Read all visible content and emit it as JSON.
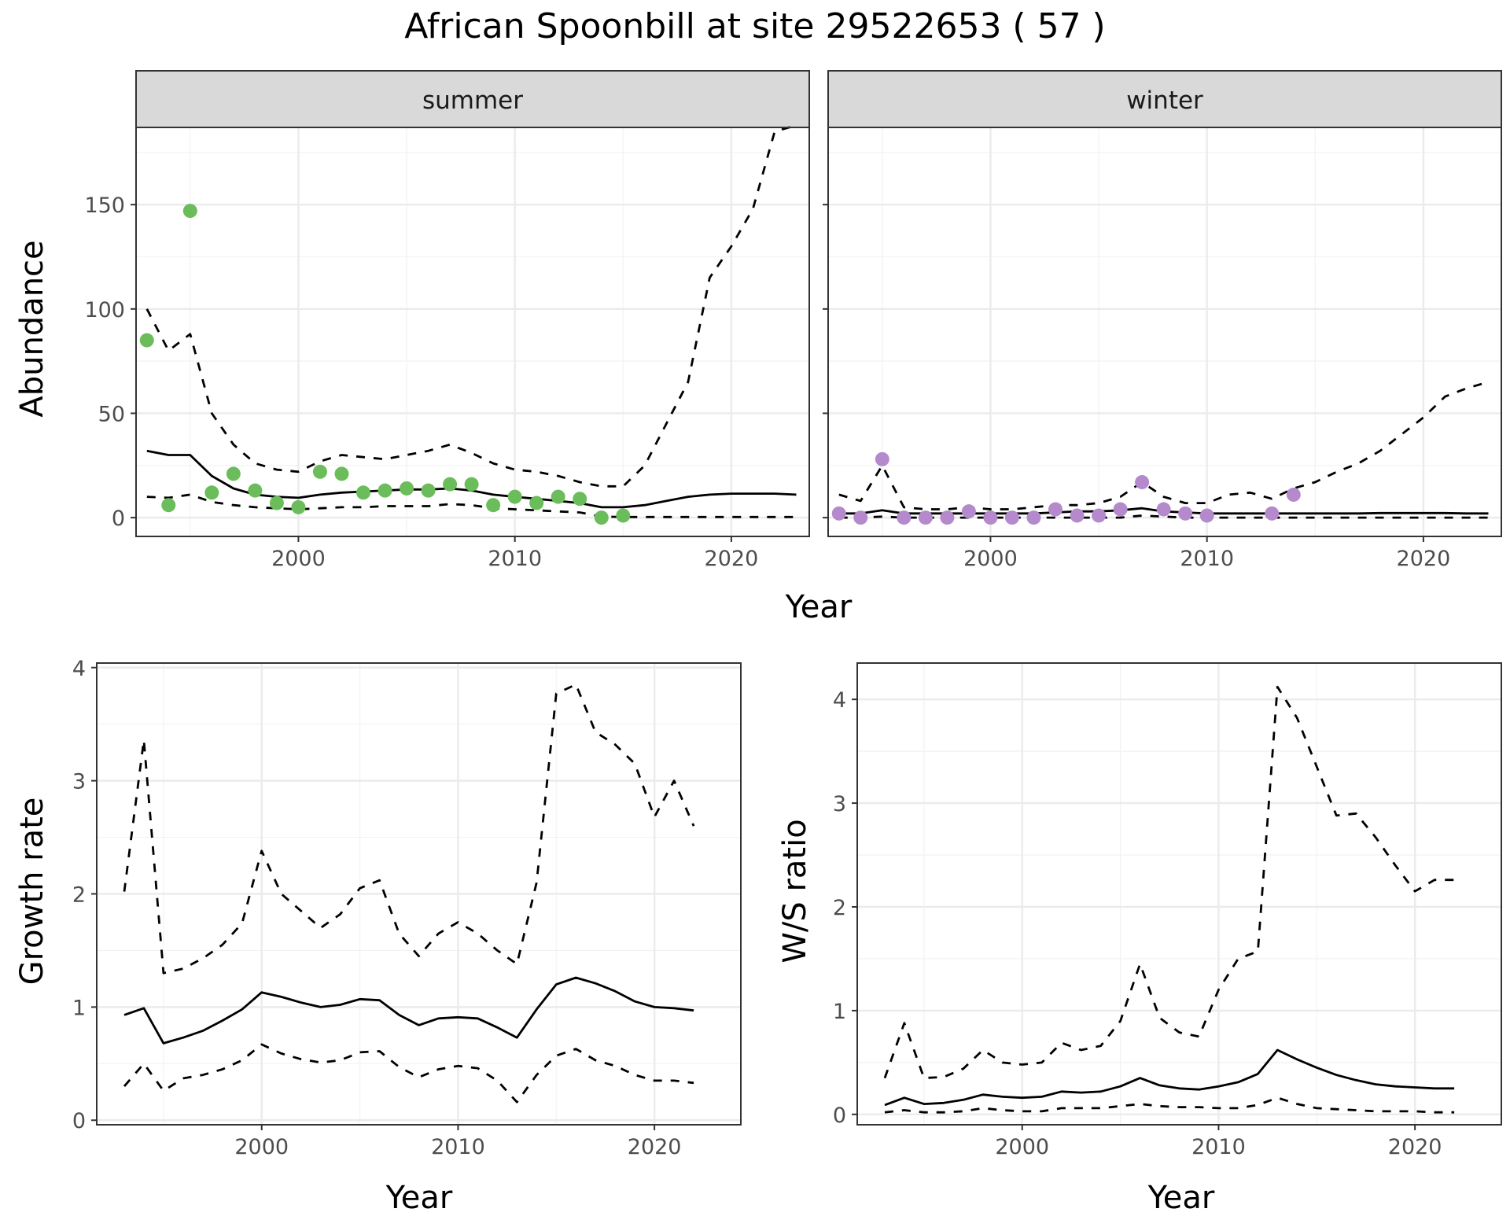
{
  "title": "African Spoonbill at site 29522653 ( 57 )",
  "colors": {
    "summer": "#6abd5a",
    "winter": "#b58acd",
    "line": "#000000",
    "strip_bg": "#d9d9d9"
  },
  "chart_data": [
    {
      "type": "scatter",
      "panel": "summer",
      "strip_label": "summer",
      "xlabel": "Year",
      "ylabel": "Abundance",
      "xlim": [
        1992.5,
        2023.6
      ],
      "ylim": [
        -9,
        187
      ],
      "x_ticks": [
        2000,
        2010,
        2020
      ],
      "y_ticks": [
        0,
        50,
        100,
        150
      ],
      "grid": true,
      "points": {
        "x": [
          1993,
          1994,
          1995,
          1996,
          1997,
          1998,
          1999,
          2000,
          2001,
          2002,
          2003,
          2004,
          2005,
          2006,
          2007,
          2008,
          2009,
          2010,
          2011,
          2012,
          2013,
          2014,
          2015
        ],
        "y": [
          85,
          6,
          147,
          12,
          21,
          13,
          7,
          5,
          22,
          21,
          12,
          13,
          14,
          13,
          16,
          16,
          6,
          10,
          7,
          10,
          9,
          0,
          1
        ]
      },
      "lines": {
        "x": [
          1993,
          1994,
          1995,
          1996,
          1997,
          1998,
          1999,
          2000,
          2001,
          2002,
          2003,
          2004,
          2005,
          2006,
          2007,
          2008,
          2009,
          2010,
          2011,
          2012,
          2013,
          2014,
          2015,
          2016,
          2017,
          2018,
          2019,
          2020,
          2021,
          2022,
          2023
        ],
        "mean": [
          32,
          30,
          30,
          20,
          14,
          11,
          10,
          9.5,
          11,
          12,
          12.5,
          13,
          13.5,
          13.5,
          14,
          13,
          11,
          10,
          9,
          8,
          7,
          5,
          5,
          6,
          8,
          10,
          11,
          11.5,
          11.5,
          11.5,
          11
        ],
        "lower": [
          10,
          9.5,
          11,
          7.5,
          6,
          5,
          4.5,
          4,
          4.5,
          5,
          5,
          5.5,
          5.5,
          5.5,
          6.5,
          6,
          4.5,
          4,
          3.5,
          3,
          2.5,
          0.5,
          0.3,
          0.3,
          0.3,
          0.3,
          0.3,
          0.3,
          0.3,
          0.3,
          0.3
        ],
        "upper": [
          100,
          80,
          88,
          50,
          35,
          26,
          23,
          22,
          27,
          30,
          29,
          28,
          30,
          32,
          35,
          31,
          26,
          23,
          22,
          20,
          17,
          15,
          15,
          25,
          45,
          65,
          115,
          130,
          148,
          185,
          188
        ]
      }
    },
    {
      "type": "scatter",
      "panel": "winter",
      "strip_label": "winter",
      "xlabel": "Year",
      "ylabel": "Abundance",
      "xlim": [
        1992.5,
        2023.6
      ],
      "ylim": [
        -9,
        187
      ],
      "x_ticks": [
        2000,
        2010,
        2020
      ],
      "grid": true,
      "points": {
        "x": [
          1993,
          1994,
          1995,
          1996,
          1997,
          1998,
          1999,
          2000,
          2001,
          2002,
          2003,
          2004,
          2005,
          2006,
          2007,
          2008,
          2009,
          2010,
          2013,
          2014
        ],
        "y": [
          2,
          0,
          28,
          0,
          0,
          0,
          3,
          0,
          0,
          0,
          4,
          1,
          1,
          4,
          17,
          4,
          2,
          1,
          2,
          11
        ]
      },
      "lines": {
        "x": [
          1993,
          1994,
          1995,
          1996,
          1997,
          1998,
          1999,
          2000,
          2001,
          2002,
          2003,
          2004,
          2005,
          2006,
          2007,
          2008,
          2009,
          2010,
          2011,
          2012,
          2013,
          2014,
          2015,
          2016,
          2017,
          2018,
          2019,
          2020,
          2021,
          2022,
          2023
        ],
        "mean": [
          2,
          2,
          3.5,
          2,
          2,
          2,
          2,
          2,
          2,
          2,
          2.5,
          3,
          3,
          3.5,
          4.5,
          3,
          2.5,
          2,
          2,
          2,
          2,
          2,
          2,
          2,
          2,
          2.2,
          2.2,
          2.2,
          2.2,
          2,
          2
        ],
        "lower": [
          0,
          0,
          0.5,
          0,
          0,
          0,
          0,
          0,
          0,
          0,
          0,
          0,
          0,
          0,
          1,
          0.5,
          0,
          0,
          0,
          0,
          0,
          0,
          0,
          0,
          0,
          0,
          0,
          0,
          0,
          0,
          0
        ],
        "upper": [
          11,
          8,
          25,
          5,
          4,
          4,
          5,
          4,
          4,
          5,
          6,
          6,
          7,
          10,
          17,
          10,
          7,
          7,
          11,
          12,
          9,
          14,
          17,
          22,
          26,
          32,
          40,
          48,
          58,
          62,
          65
        ]
      }
    },
    {
      "type": "line",
      "panel": "growth",
      "xlabel": "Year",
      "ylabel": "Growth rate",
      "xlim": [
        1991.6,
        2024.4
      ],
      "ylim": [
        -0.04,
        4.04
      ],
      "x_ticks": [
        2000,
        2010,
        2020
      ],
      "y_ticks": [
        0,
        1,
        2,
        3,
        4
      ],
      "grid": true,
      "x": [
        1993,
        1994,
        1995,
        1996,
        1997,
        1998,
        1999,
        2000,
        2001,
        2002,
        2003,
        2004,
        2005,
        2006,
        2007,
        2008,
        2009,
        2010,
        2011,
        2012,
        2013,
        2014,
        2015,
        2016,
        2017,
        2018,
        2019,
        2020,
        2021,
        2022
      ],
      "mean": [
        0.93,
        0.99,
        0.68,
        0.73,
        0.79,
        0.88,
        0.98,
        1.13,
        1.09,
        1.04,
        1.0,
        1.02,
        1.07,
        1.06,
        0.93,
        0.84,
        0.9,
        0.91,
        0.9,
        0.82,
        0.73,
        0.98,
        1.2,
        1.26,
        1.21,
        1.14,
        1.05,
        1.0,
        0.99,
        0.97
      ],
      "lower": [
        0.3,
        0.5,
        0.26,
        0.37,
        0.4,
        0.45,
        0.53,
        0.67,
        0.59,
        0.54,
        0.51,
        0.53,
        0.6,
        0.61,
        0.47,
        0.38,
        0.45,
        0.48,
        0.46,
        0.35,
        0.16,
        0.4,
        0.57,
        0.63,
        0.53,
        0.48,
        0.4,
        0.35,
        0.35,
        0.33
      ],
      "upper": [
        2.02,
        3.36,
        1.3,
        1.34,
        1.43,
        1.55,
        1.74,
        2.38,
        2.0,
        1.85,
        1.7,
        1.82,
        2.05,
        2.12,
        1.65,
        1.45,
        1.65,
        1.75,
        1.65,
        1.5,
        1.38,
        2.1,
        3.77,
        3.85,
        3.43,
        3.32,
        3.15,
        2.68,
        3.0,
        2.6
      ]
    },
    {
      "type": "line",
      "panel": "ws_ratio",
      "xlabel": "Year",
      "ylabel": "W/S ratio",
      "xlim": [
        1991.6,
        2024.4
      ],
      "ylim": [
        -0.1,
        4.35
      ],
      "x_ticks": [
        2000,
        2010,
        2020
      ],
      "y_ticks": [
        0,
        1,
        2,
        3,
        4
      ],
      "grid": true,
      "x": [
        1993,
        1994,
        1995,
        1996,
        1997,
        1998,
        1999,
        2000,
        2001,
        2002,
        2003,
        2004,
        2005,
        2006,
        2007,
        2008,
        2009,
        2010,
        2011,
        2012,
        2013,
        2014,
        2015,
        2016,
        2017,
        2018,
        2019,
        2020,
        2021,
        2022
      ],
      "mean": [
        0.09,
        0.16,
        0.1,
        0.11,
        0.14,
        0.19,
        0.17,
        0.16,
        0.17,
        0.22,
        0.21,
        0.22,
        0.27,
        0.35,
        0.28,
        0.25,
        0.24,
        0.27,
        0.31,
        0.39,
        0.62,
        0.53,
        0.45,
        0.38,
        0.33,
        0.29,
        0.27,
        0.26,
        0.25,
        0.25
      ],
      "lower": [
        0.02,
        0.04,
        0.02,
        0.02,
        0.03,
        0.06,
        0.04,
        0.03,
        0.03,
        0.06,
        0.06,
        0.06,
        0.08,
        0.1,
        0.08,
        0.07,
        0.07,
        0.06,
        0.06,
        0.09,
        0.16,
        0.1,
        0.06,
        0.05,
        0.04,
        0.03,
        0.03,
        0.03,
        0.02,
        0.02
      ],
      "upper": [
        0.35,
        0.88,
        0.35,
        0.36,
        0.44,
        0.62,
        0.5,
        0.48,
        0.5,
        0.69,
        0.62,
        0.66,
        0.9,
        1.45,
        0.93,
        0.79,
        0.75,
        1.2,
        1.5,
        1.57,
        4.12,
        3.82,
        3.35,
        2.88,
        2.9,
        2.67,
        2.4,
        2.15,
        2.26,
        2.26
      ]
    }
  ]
}
